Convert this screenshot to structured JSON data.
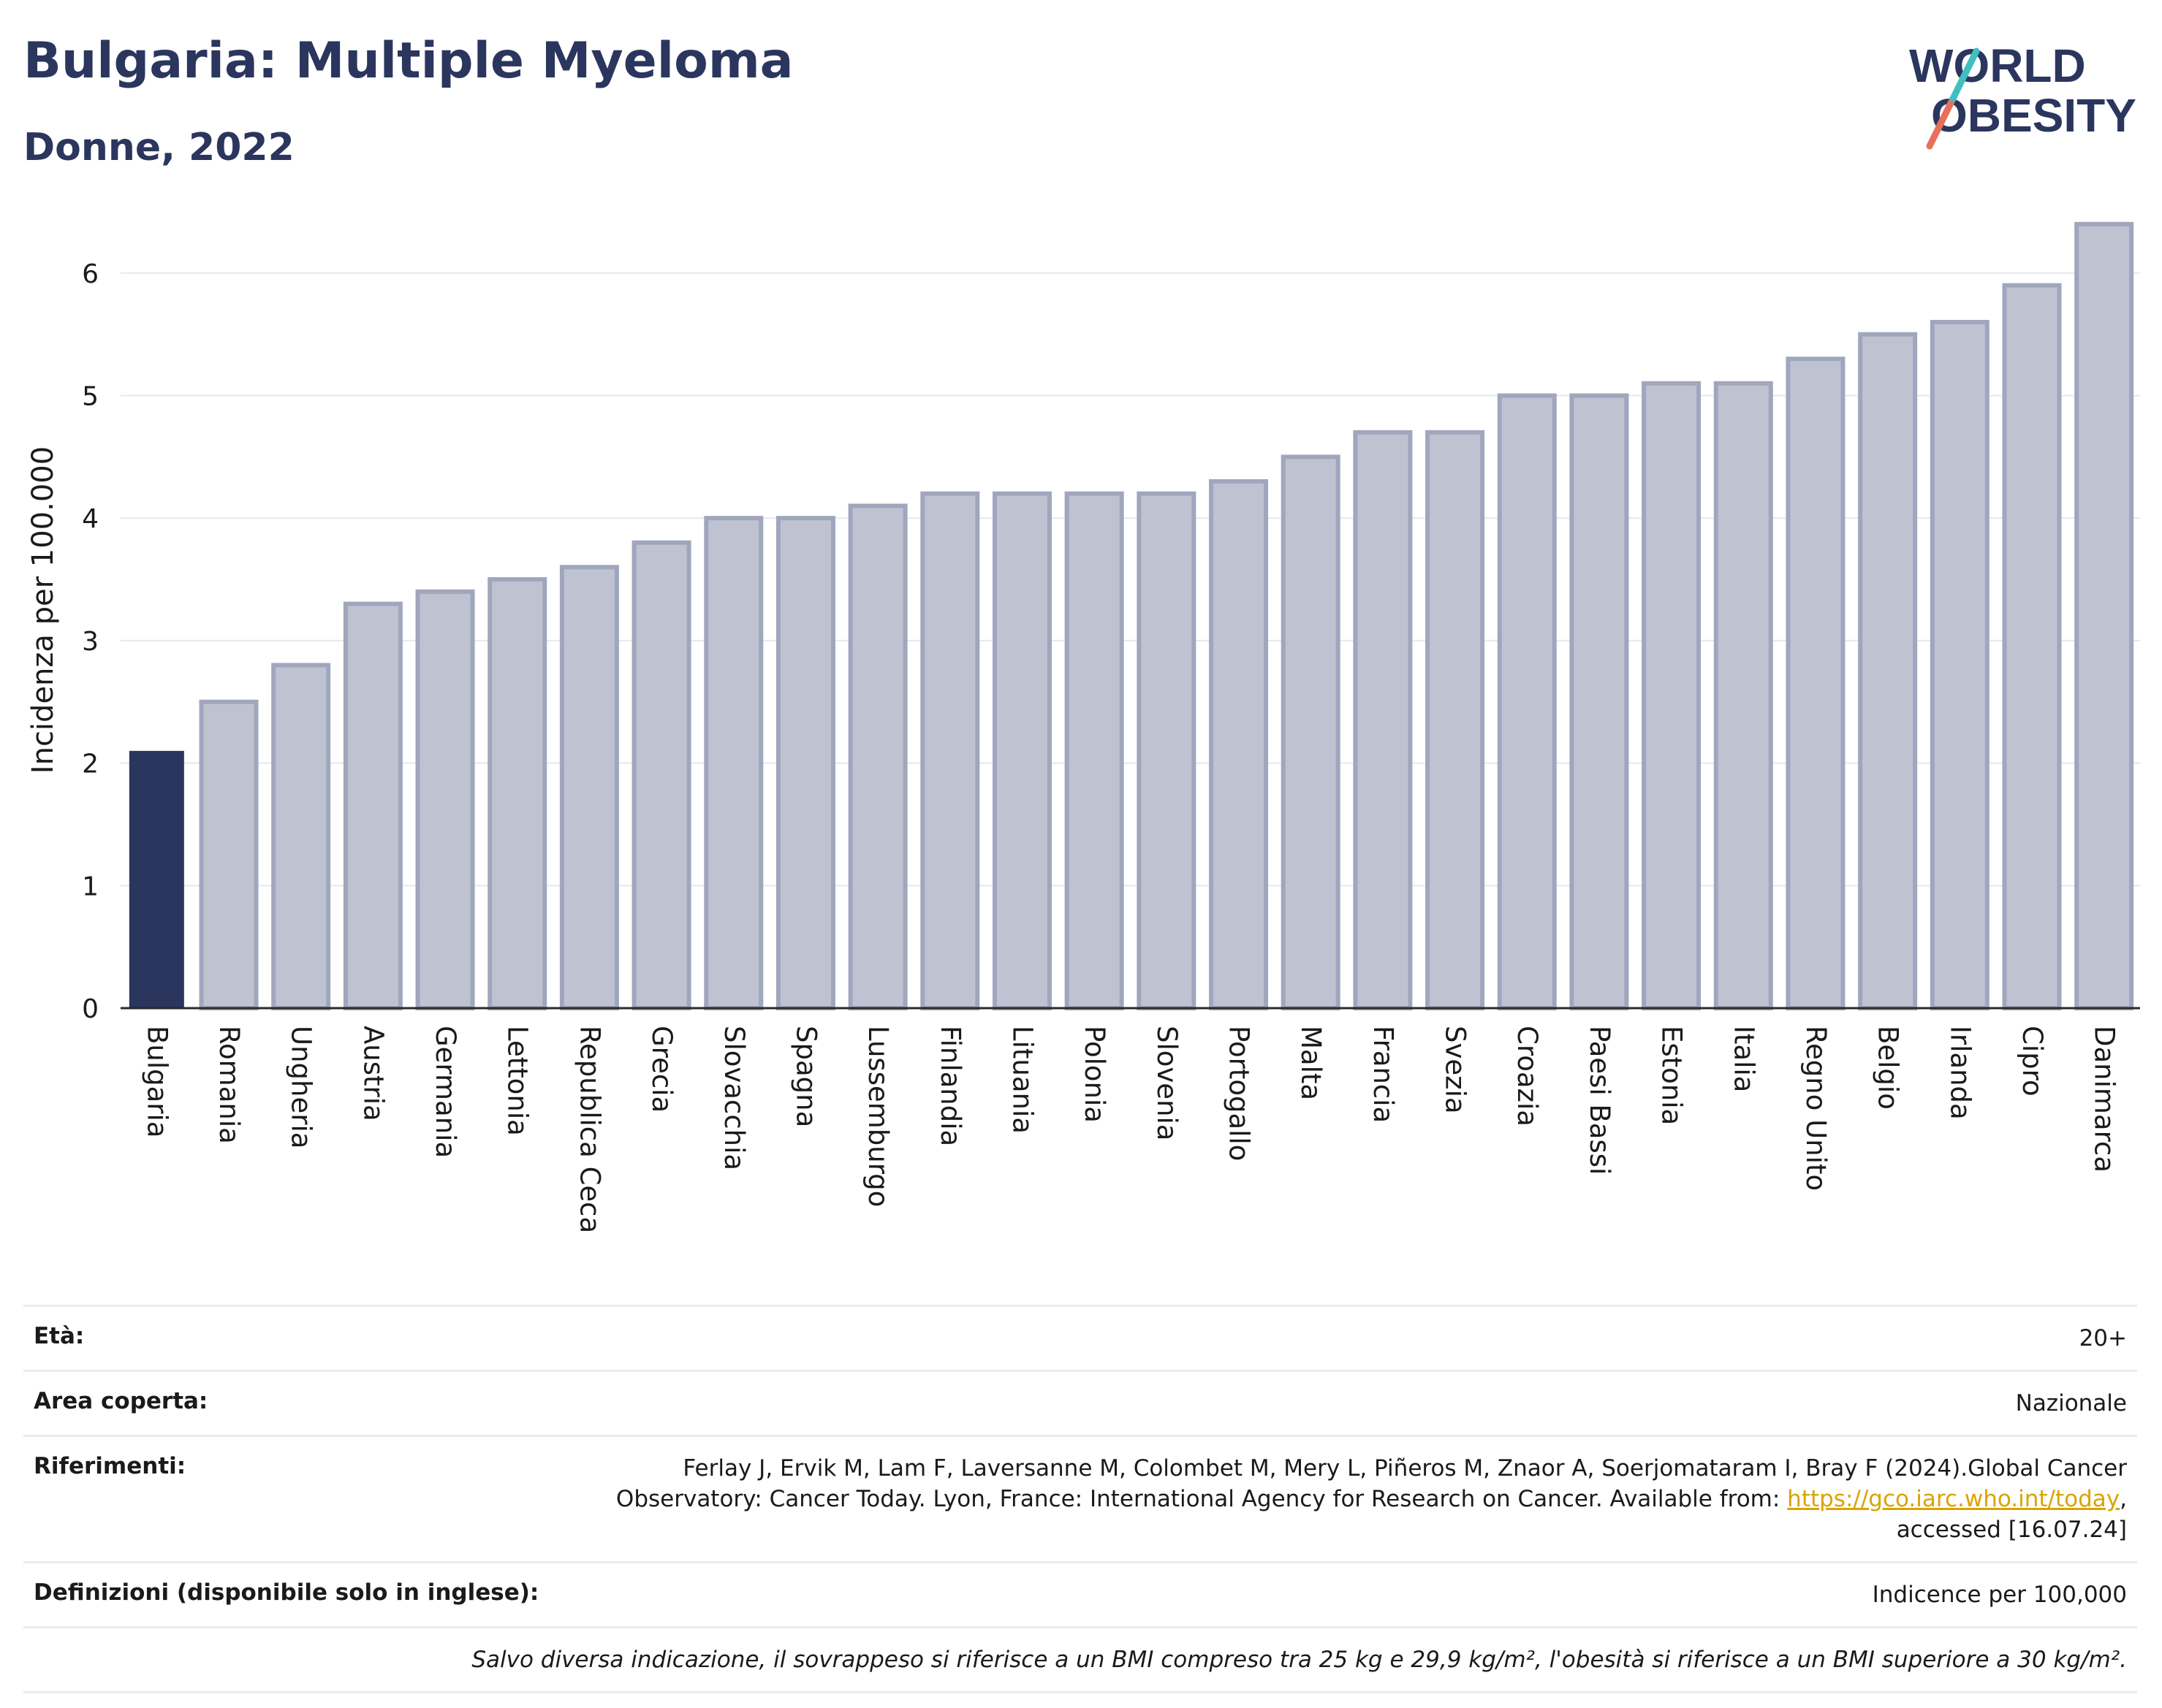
{
  "header": {
    "title": "Bulgaria: Multiple Myeloma",
    "subtitle": "Donne, 2022"
  },
  "logo": {
    "line1": "WORLD",
    "line2": "OBESITY",
    "colors": {
      "text": "#2b365e",
      "slash_top": "#3fbfbf",
      "slash_bottom": "#e8705a"
    }
  },
  "colors": {
    "highlight_bar": "#2b365e",
    "bar_fill": "#bfc3d1",
    "bar_stroke": "#a0a6bd",
    "grid": "#e6e8ee",
    "axis": "#2a2a2a"
  },
  "chart_data": {
    "type": "bar",
    "title": "Bulgaria: Multiple Myeloma",
    "subtitle": "Donne, 2022",
    "ylabel": "Incidenza per 100.000",
    "xlabel": "",
    "ylim": [
      0,
      6.5
    ],
    "yticks": [
      0,
      1,
      2,
      3,
      4,
      5,
      6
    ],
    "grid": true,
    "highlight": "Bulgaria",
    "categories": [
      "Bulgaria",
      "Romania",
      "Ungheria",
      "Austria",
      "Germania",
      "Lettonia",
      "Republica Ceca",
      "Grecia",
      "Slovacchia",
      "Spagna",
      "Lussemburgo",
      "Finlandia",
      "Lituania",
      "Polonia",
      "Slovenia",
      "Portogallo",
      "Malta",
      "Francia",
      "Svezia",
      "Croazia",
      "Paesi Bassi",
      "Estonia",
      "Italia",
      "Regno Unito",
      "Belgio",
      "Irlanda",
      "Cipro",
      "Danimarca"
    ],
    "values": [
      2.1,
      2.5,
      2.8,
      3.3,
      3.4,
      3.5,
      3.6,
      3.8,
      4.0,
      4.0,
      4.1,
      4.2,
      4.2,
      4.2,
      4.2,
      4.3,
      4.5,
      4.7,
      4.7,
      5.0,
      5.0,
      5.1,
      5.1,
      5.3,
      5.5,
      5.6,
      5.9,
      6.4
    ]
  },
  "info": {
    "age_label": "Età:",
    "age_value": "20+",
    "area_label": "Area coperta:",
    "area_value": "Nazionale",
    "ref_label": "Riferimenti:",
    "ref_line1": "Ferlay J, Ervik M, Lam F, Laversanne M, Colombet M, Mery L, Piñeros M, Znaor A, Soerjomataram I, Bray F (2024).Global Cancer",
    "ref_line2": "Observatory: Cancer Today. Lyon, France: International Agency for Research on Cancer. Available from: ",
    "ref_link": "https://gco.iarc.who.int/today",
    "ref_comma": ",",
    "ref_line3": "accessed [16.07.24]",
    "def_label": "Definizioni (disponibile solo in inglese):",
    "def_value": "Indicence per 100,000",
    "note": "Salvo diversa indicazione, il sovrappeso si riferisce a un BMI compreso tra 25 kg e 29,9 kg/m², l'obesità si riferisce a un BMI superiore a 30 kg/m²."
  }
}
